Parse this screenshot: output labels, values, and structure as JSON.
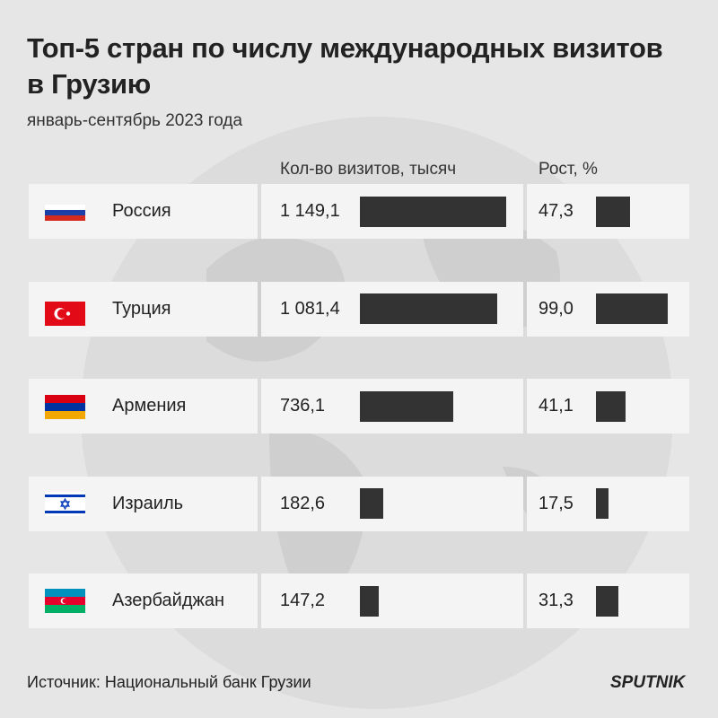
{
  "chart_data": {
    "type": "table-bar",
    "title": "Топ-5 стран по числу международных визитов в Грузию",
    "subtitle": "январь-сентябрь 2023 года",
    "categories": [
      "Россия",
      "Турция",
      "Армения",
      "Израиль",
      "Азербайджан"
    ],
    "series": [
      {
        "name": "Кол-во визитов, тысяч",
        "color": "#333333",
        "values": [
          1149.1,
          1081.4,
          736.1,
          182.6,
          147.2
        ],
        "value_labels": [
          "1 149,1",
          "1 081,4",
          "736,1",
          "182,6",
          "147,2"
        ]
      },
      {
        "name": "Рост, %",
        "color": "#333333",
        "values": [
          47.3,
          99.0,
          41.1,
          17.5,
          31.3
        ],
        "value_labels": [
          "47,3",
          "99,0",
          "41,1",
          "17,5",
          "31,3"
        ]
      }
    ],
    "source": "Источник: Национальный банк Грузии",
    "logo": "SPUTNIK"
  }
}
